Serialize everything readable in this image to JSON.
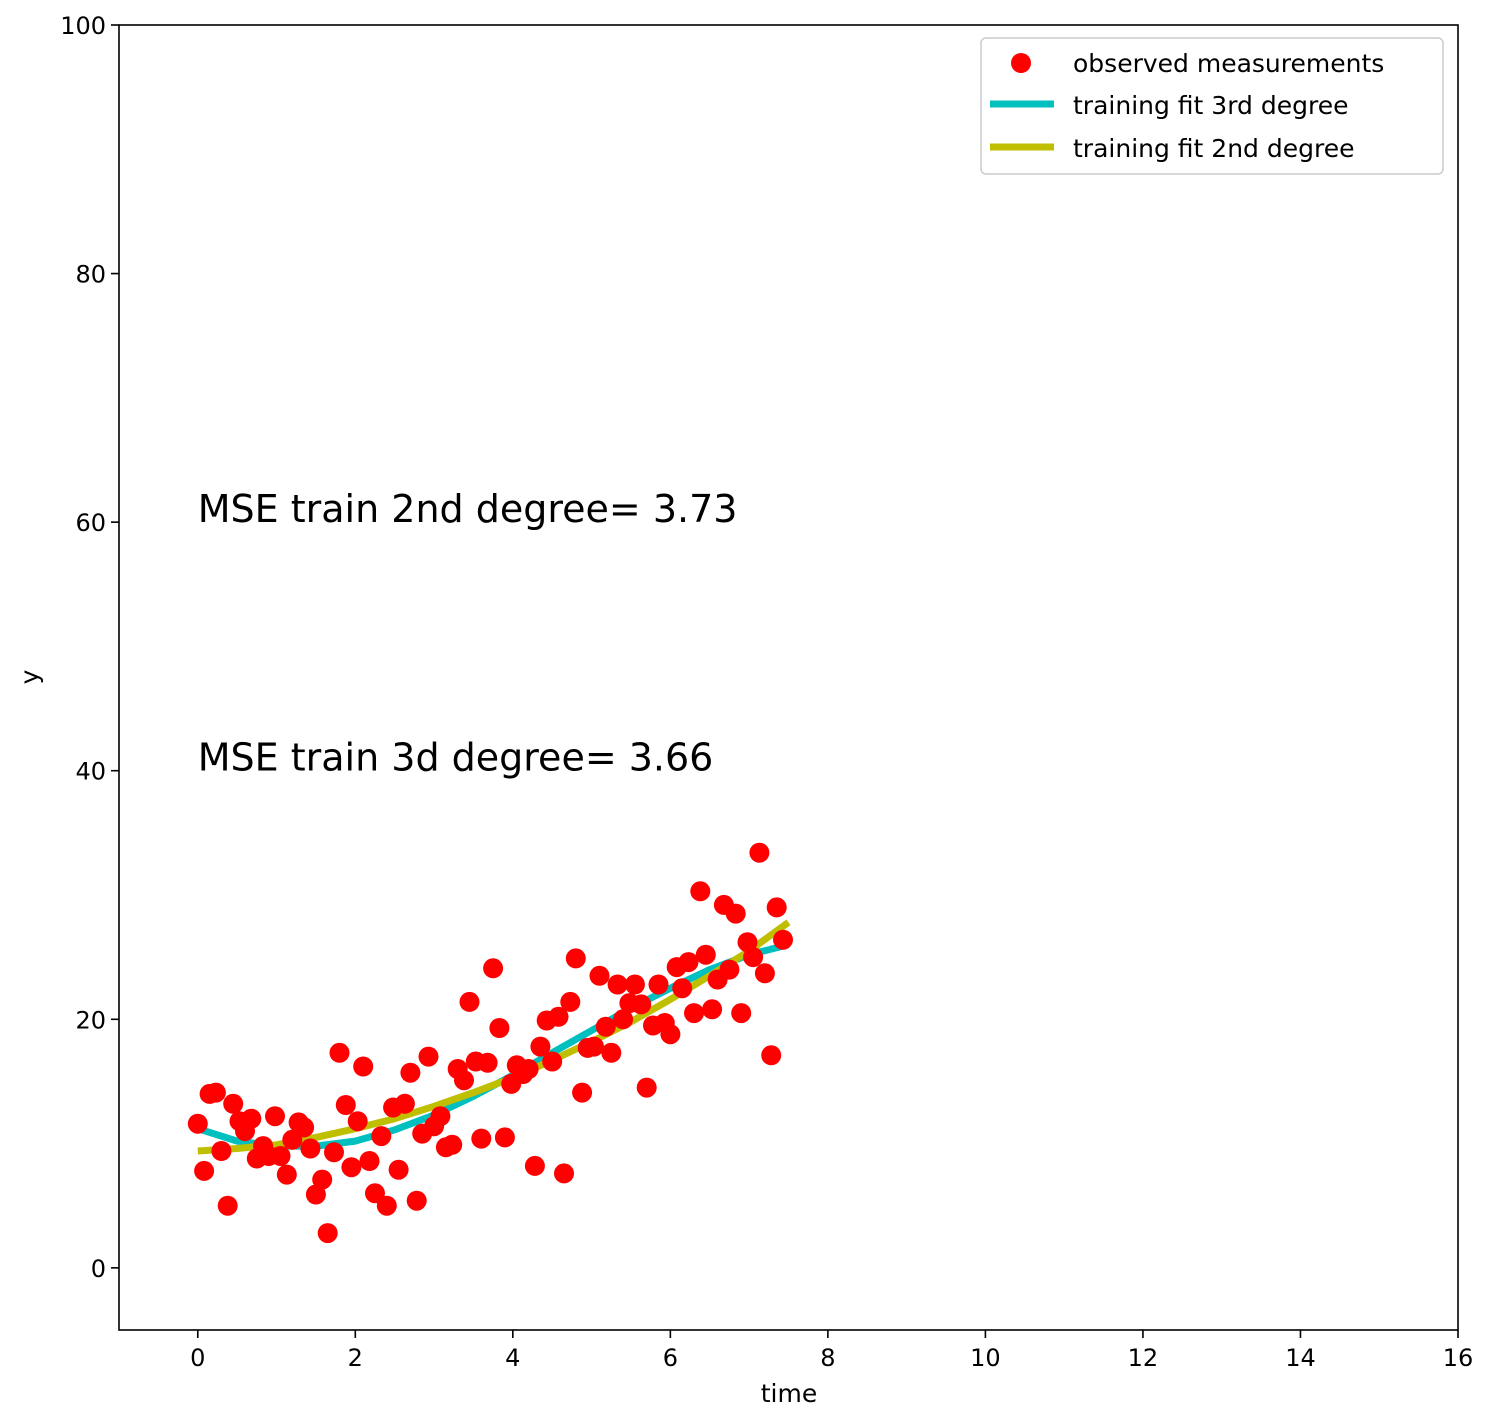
{
  "chart_data": {
    "type": "scatter",
    "xlabel": "time",
    "ylabel": "y",
    "xlim": [
      -1,
      16
    ],
    "ylim": [
      -5,
      100
    ],
    "x_ticks": [
      0,
      2,
      4,
      6,
      8,
      10,
      12,
      14,
      16
    ],
    "y_ticks": [
      0,
      20,
      40,
      60,
      80,
      100
    ],
    "grid": false,
    "legend_position": "top-right",
    "legend": [
      {
        "label": "observed measurements",
        "kind": "marker",
        "color": "#ff0000"
      },
      {
        "label": "training fit 3rd degree",
        "kind": "line",
        "color": "#00bfbf"
      },
      {
        "label": "training fit 2nd degree",
        "kind": "line",
        "color": "#bfbf00"
      }
    ],
    "annotations": [
      {
        "text": "MSE train 2nd degree= 3.73",
        "x": 0,
        "y": 60
      },
      {
        "text": "MSE train 3d degree= 3.66",
        "x": 0,
        "y": 40
      }
    ],
    "scatter_series": {
      "name": "observed measurements",
      "color": "#ff0000",
      "points": [
        [
          0.0,
          11.6
        ],
        [
          0.08,
          7.8
        ],
        [
          0.15,
          14.0
        ],
        [
          0.23,
          14.1
        ],
        [
          0.3,
          9.4
        ],
        [
          0.38,
          5.0
        ],
        [
          0.45,
          13.2
        ],
        [
          0.53,
          11.8
        ],
        [
          0.6,
          11.0
        ],
        [
          0.68,
          12.0
        ],
        [
          0.75,
          8.8
        ],
        [
          0.83,
          9.8
        ],
        [
          0.9,
          9.0
        ],
        [
          0.98,
          12.2
        ],
        [
          1.05,
          9.0
        ],
        [
          1.13,
          7.5
        ],
        [
          1.2,
          10.3
        ],
        [
          1.28,
          11.7
        ],
        [
          1.35,
          11.3
        ],
        [
          1.43,
          9.6
        ],
        [
          1.5,
          5.9
        ],
        [
          1.58,
          7.1
        ],
        [
          1.65,
          2.8
        ],
        [
          1.73,
          9.3
        ],
        [
          1.8,
          17.3
        ],
        [
          1.88,
          13.1
        ],
        [
          1.95,
          8.1
        ],
        [
          2.03,
          11.8
        ],
        [
          2.1,
          16.2
        ],
        [
          2.18,
          8.6
        ],
        [
          2.25,
          6.0
        ],
        [
          2.33,
          10.6
        ],
        [
          2.4,
          5.0
        ],
        [
          2.48,
          12.9
        ],
        [
          2.55,
          7.9
        ],
        [
          2.63,
          13.2
        ],
        [
          2.7,
          15.7
        ],
        [
          2.78,
          5.4
        ],
        [
          2.85,
          10.8
        ],
        [
          2.93,
          17.0
        ],
        [
          3.0,
          11.4
        ],
        [
          3.08,
          12.2
        ],
        [
          3.15,
          9.7
        ],
        [
          3.23,
          9.9
        ],
        [
          3.3,
          16.0
        ],
        [
          3.38,
          15.1
        ],
        [
          3.45,
          21.4
        ],
        [
          3.53,
          16.6
        ],
        [
          3.6,
          10.4
        ],
        [
          3.68,
          16.5
        ],
        [
          3.75,
          24.1
        ],
        [
          3.83,
          19.3
        ],
        [
          3.9,
          10.5
        ],
        [
          3.98,
          14.8
        ],
        [
          4.05,
          16.3
        ],
        [
          4.13,
          15.6
        ],
        [
          4.2,
          16.0
        ],
        [
          4.28,
          8.2
        ],
        [
          4.35,
          17.8
        ],
        [
          4.43,
          19.9
        ],
        [
          4.5,
          16.6
        ],
        [
          4.58,
          20.2
        ],
        [
          4.65,
          7.6
        ],
        [
          4.73,
          21.4
        ],
        [
          4.8,
          24.9
        ],
        [
          4.88,
          14.1
        ],
        [
          4.95,
          17.7
        ],
        [
          5.03,
          17.8
        ],
        [
          5.1,
          23.5
        ],
        [
          5.18,
          19.4
        ],
        [
          5.25,
          17.3
        ],
        [
          5.33,
          22.8
        ],
        [
          5.4,
          20.0
        ],
        [
          5.48,
          21.3
        ],
        [
          5.55,
          22.8
        ],
        [
          5.63,
          21.2
        ],
        [
          5.7,
          14.5
        ],
        [
          5.78,
          19.5
        ],
        [
          5.85,
          22.8
        ],
        [
          5.93,
          19.7
        ],
        [
          6.0,
          18.8
        ],
        [
          6.08,
          24.2
        ],
        [
          6.15,
          22.5
        ],
        [
          6.23,
          24.6
        ],
        [
          6.3,
          20.5
        ],
        [
          6.38,
          30.3
        ],
        [
          6.45,
          25.2
        ],
        [
          6.53,
          20.8
        ],
        [
          6.6,
          23.2
        ],
        [
          6.68,
          29.2
        ],
        [
          6.75,
          24.0
        ],
        [
          6.83,
          28.5
        ],
        [
          6.9,
          20.5
        ],
        [
          6.98,
          26.2
        ],
        [
          7.05,
          25.0
        ],
        [
          7.13,
          33.4
        ],
        [
          7.2,
          23.7
        ],
        [
          7.28,
          17.1
        ],
        [
          7.35,
          29.0
        ],
        [
          7.43,
          26.4
        ]
      ]
    },
    "line_series": [
      {
        "name": "training fit 3rd degree",
        "color": "#00bfbf",
        "x": [
          0,
          0.5,
          1,
          1.5,
          2,
          2.5,
          3,
          3.5,
          4,
          4.5,
          5,
          5.5,
          6,
          6.5,
          7,
          7.5
        ],
        "y": [
          11.2,
          10.2,
          9.8,
          9.8,
          10.2,
          11.1,
          12.3,
          13.8,
          15.5,
          17.3,
          19.1,
          20.9,
          22.5,
          24.0,
          25.2,
          26.0
        ]
      },
      {
        "name": "training fit 2nd degree",
        "color": "#bfbf00",
        "x": [
          0,
          0.5,
          1,
          1.5,
          2,
          2.5,
          3,
          3.5,
          4,
          4.5,
          5,
          5.5,
          6,
          6.5,
          7,
          7.5
        ],
        "y": [
          9.4,
          9.6,
          9.9,
          10.5,
          11.2,
          12.0,
          13.0,
          14.1,
          15.3,
          16.7,
          18.2,
          19.8,
          21.6,
          23.5,
          25.5,
          27.8
        ]
      }
    ]
  }
}
